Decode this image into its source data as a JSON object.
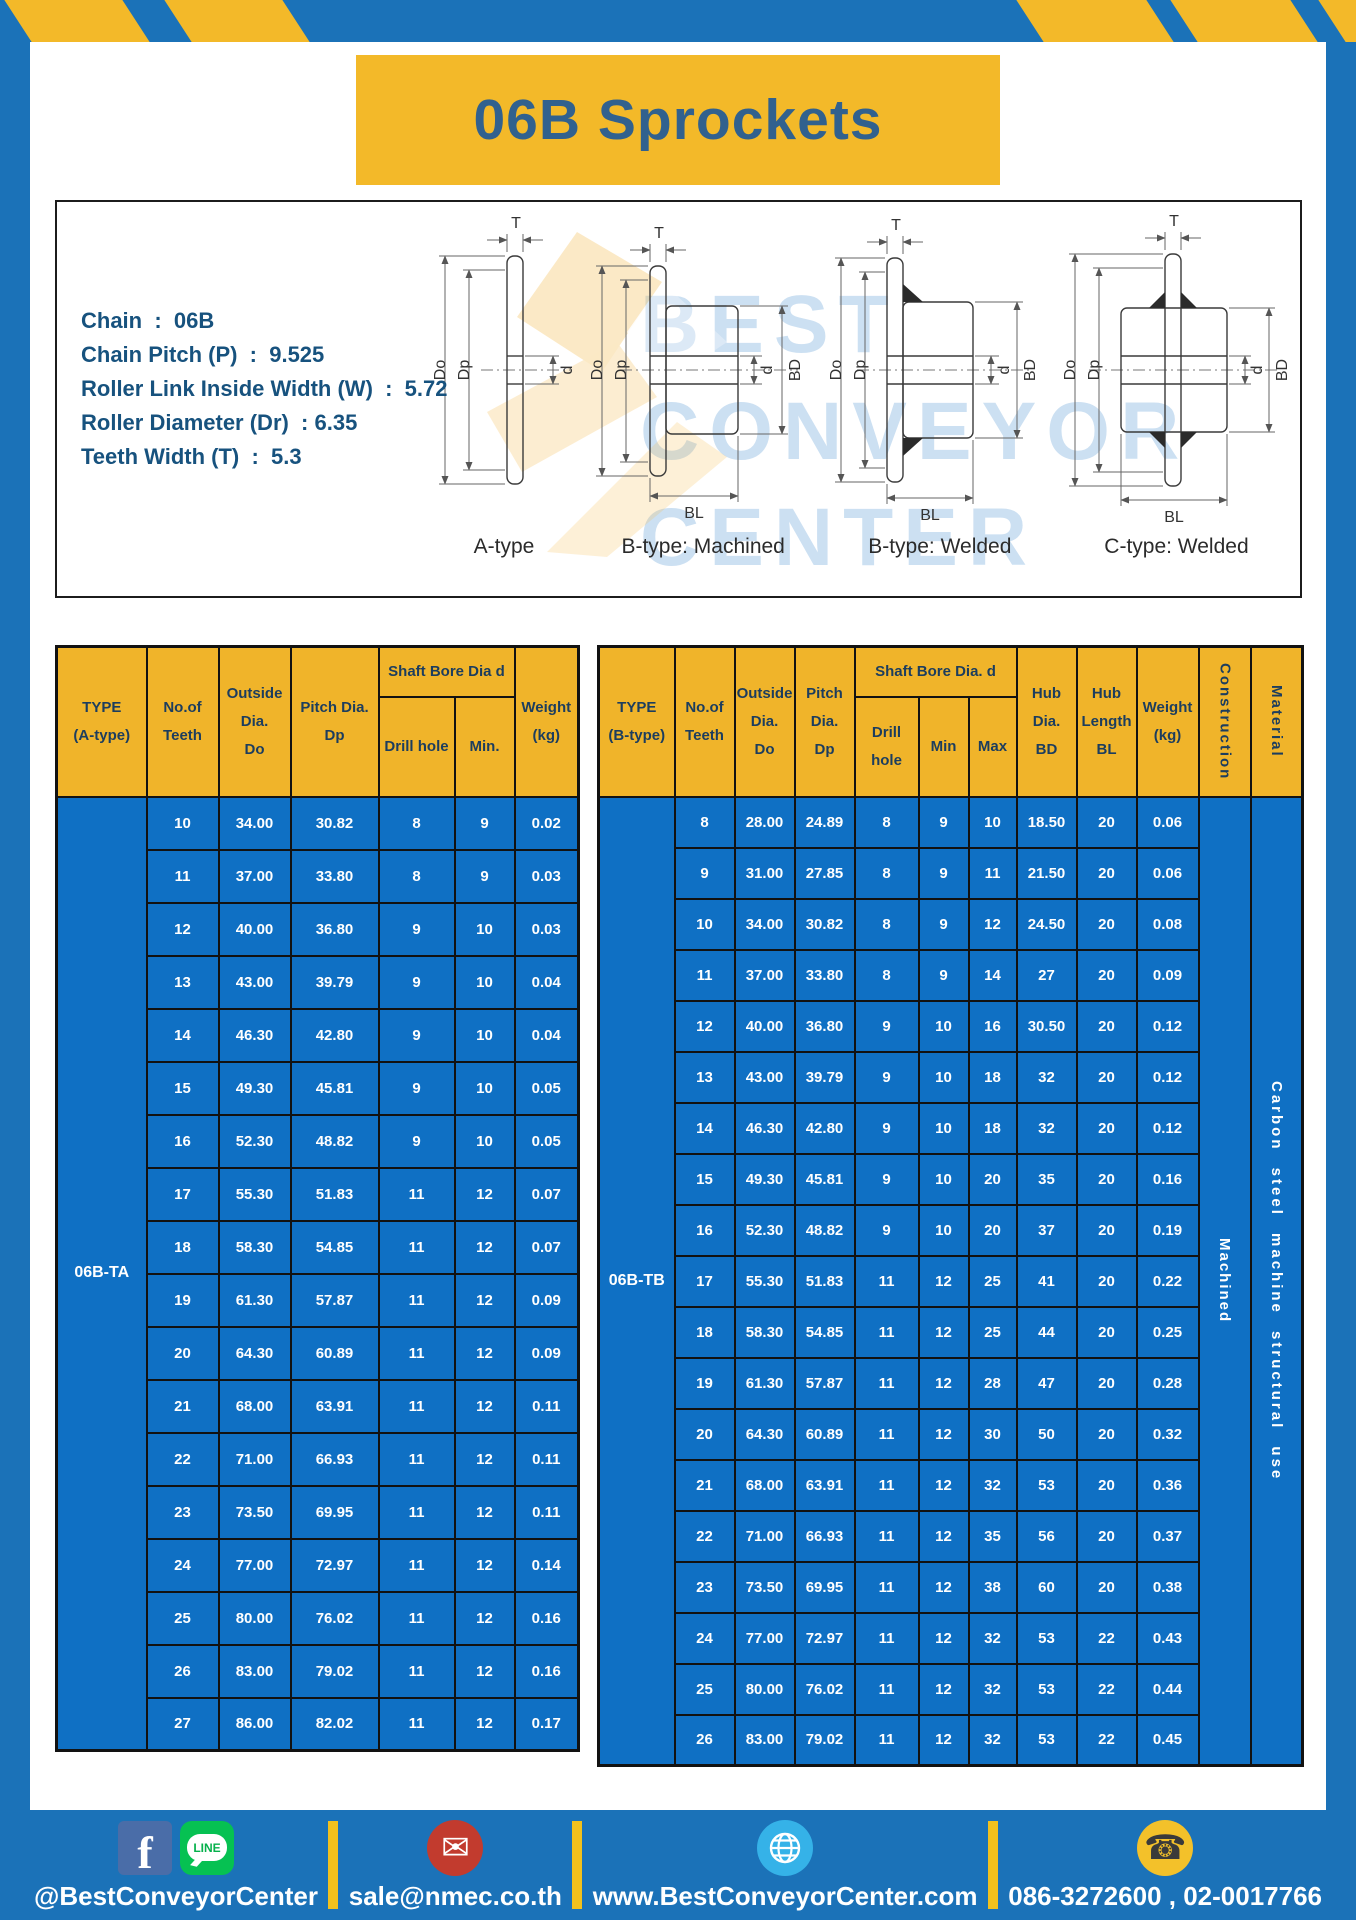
{
  "brand": {
    "blue": "#1b72b8",
    "yellow": "#f3b929",
    "table_blue": "#0f70c4",
    "header_text": "#1c3d5e"
  },
  "title": "06B Sprockets",
  "specs": {
    "lines": [
      "Chain  :  06B",
      "Chain Pitch (P)  :  9.525",
      "Roller Link Inside Width (W)  :  5.72",
      "Roller Diameter (Dr)  : 6.35",
      "Teeth Width (T)  :  5.3"
    ]
  },
  "watermark": {
    "line1": "BEST",
    "line2": "CONVEYOR",
    "line3": "CENTER"
  },
  "drawings": {
    "dim_labels": {
      "t": "T",
      "do": "Do",
      "dp": "Dp",
      "d": "d",
      "bd": "BD",
      "bl": "BL"
    },
    "figures": [
      {
        "caption": "A-type"
      },
      {
        "caption": "B-type: Machined"
      },
      {
        "caption": "B-type: Welded"
      },
      {
        "caption": "C-type: Welded"
      }
    ]
  },
  "tables": {
    "left": {
      "type_label": "06B-TA",
      "headers": {
        "type": "TYPE\n(A-type)",
        "teeth": "No.of\nTeeth",
        "outside": "Outside\nDia.\nDo",
        "pitch": "Pitch Dia.\nDp",
        "shaft_bore": "Shaft Bore Dia d",
        "drill": "Drill hole",
        "min": "Min.",
        "weight": "Weight\n(kg)"
      },
      "rows": [
        [
          "10",
          "34.00",
          "30.82",
          "8",
          "9",
          "0.02"
        ],
        [
          "11",
          "37.00",
          "33.80",
          "8",
          "9",
          "0.03"
        ],
        [
          "12",
          "40.00",
          "36.80",
          "9",
          "10",
          "0.03"
        ],
        [
          "13",
          "43.00",
          "39.79",
          "9",
          "10",
          "0.04"
        ],
        [
          "14",
          "46.30",
          "42.80",
          "9",
          "10",
          "0.04"
        ],
        [
          "15",
          "49.30",
          "45.81",
          "9",
          "10",
          "0.05"
        ],
        [
          "16",
          "52.30",
          "48.82",
          "9",
          "10",
          "0.05"
        ],
        [
          "17",
          "55.30",
          "51.83",
          "11",
          "12",
          "0.07"
        ],
        [
          "18",
          "58.30",
          "54.85",
          "11",
          "12",
          "0.07"
        ],
        [
          "19",
          "61.30",
          "57.87",
          "11",
          "12",
          "0.09"
        ],
        [
          "20",
          "64.30",
          "60.89",
          "11",
          "12",
          "0.09"
        ],
        [
          "21",
          "68.00",
          "63.91",
          "11",
          "12",
          "0.11"
        ],
        [
          "22",
          "71.00",
          "66.93",
          "11",
          "12",
          "0.11"
        ],
        [
          "23",
          "73.50",
          "69.95",
          "11",
          "12",
          "0.11"
        ],
        [
          "24",
          "77.00",
          "72.97",
          "11",
          "12",
          "0.14"
        ],
        [
          "25",
          "80.00",
          "76.02",
          "11",
          "12",
          "0.16"
        ],
        [
          "26",
          "83.00",
          "79.02",
          "11",
          "12",
          "0.16"
        ],
        [
          "27",
          "86.00",
          "82.02",
          "11",
          "12",
          "0.17"
        ]
      ]
    },
    "right": {
      "type_label": "06B-TB",
      "construction_value": "Machined",
      "material_value": "Carbon steel machine structural use",
      "headers": {
        "type": "TYPE\n(B-type)",
        "teeth": "No.of\nTeeth",
        "outside": "Outside\nDia.\nDo",
        "pitch": "Pitch\nDia.\nDp",
        "shaft_bore": "Shaft Bore Dia.  d",
        "drill": "Drill hole",
        "min": "Min",
        "max": "Max",
        "hub_dia": "Hub\nDia.\nBD",
        "hub_len": "Hub\nLength\nBL",
        "weight": "Weight\n(kg)",
        "construction": "Construction",
        "material": "Material"
      },
      "rows": [
        [
          "8",
          "28.00",
          "24.89",
          "8",
          "9",
          "10",
          "18.50",
          "20",
          "0.06"
        ],
        [
          "9",
          "31.00",
          "27.85",
          "8",
          "9",
          "11",
          "21.50",
          "20",
          "0.06"
        ],
        [
          "10",
          "34.00",
          "30.82",
          "8",
          "9",
          "12",
          "24.50",
          "20",
          "0.08"
        ],
        [
          "11",
          "37.00",
          "33.80",
          "8",
          "9",
          "14",
          "27",
          "20",
          "0.09"
        ],
        [
          "12",
          "40.00",
          "36.80",
          "9",
          "10",
          "16",
          "30.50",
          "20",
          "0.12"
        ],
        [
          "13",
          "43.00",
          "39.79",
          "9",
          "10",
          "18",
          "32",
          "20",
          "0.12"
        ],
        [
          "14",
          "46.30",
          "42.80",
          "9",
          "10",
          "18",
          "32",
          "20",
          "0.12"
        ],
        [
          "15",
          "49.30",
          "45.81",
          "9",
          "10",
          "20",
          "35",
          "20",
          "0.16"
        ],
        [
          "16",
          "52.30",
          "48.82",
          "9",
          "10",
          "20",
          "37",
          "20",
          "0.19"
        ],
        [
          "17",
          "55.30",
          "51.83",
          "11",
          "12",
          "25",
          "41",
          "20",
          "0.22"
        ],
        [
          "18",
          "58.30",
          "54.85",
          "11",
          "12",
          "25",
          "44",
          "20",
          "0.25"
        ],
        [
          "19",
          "61.30",
          "57.87",
          "11",
          "12",
          "28",
          "47",
          "20",
          "0.28"
        ],
        [
          "20",
          "64.30",
          "60.89",
          "11",
          "12",
          "30",
          "50",
          "20",
          "0.32"
        ],
        [
          "21",
          "68.00",
          "63.91",
          "11",
          "12",
          "32",
          "53",
          "20",
          "0.36"
        ],
        [
          "22",
          "71.00",
          "66.93",
          "11",
          "12",
          "35",
          "56",
          "20",
          "0.37"
        ],
        [
          "23",
          "73.50",
          "69.95",
          "11",
          "12",
          "38",
          "60",
          "20",
          "0.38"
        ],
        [
          "24",
          "77.00",
          "72.97",
          "11",
          "12",
          "32",
          "53",
          "22",
          "0.43"
        ],
        [
          "25",
          "80.00",
          "76.02",
          "11",
          "12",
          "32",
          "53",
          "22",
          "0.44"
        ],
        [
          "26",
          "83.00",
          "79.02",
          "11",
          "12",
          "32",
          "53",
          "22",
          "0.45"
        ]
      ]
    }
  },
  "footer": {
    "social_handle": "@BestConveyorCenter",
    "fb_letter": "f",
    "line_label": "LINE",
    "email": "sale@nmec.co.th",
    "mail_glyph": "✉",
    "website": "www.BestConveyorCenter.com",
    "phone_glyph": "☎",
    "phone": "086-3272600 , 02-0017766"
  }
}
